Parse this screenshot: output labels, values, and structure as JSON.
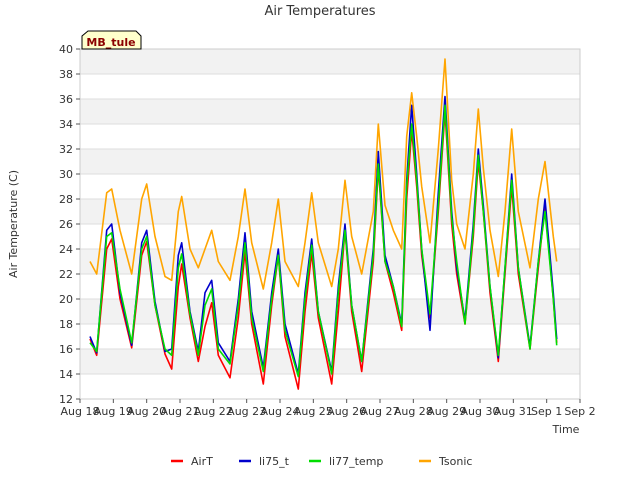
{
  "chart_data": {
    "type": "line",
    "title": "Air Temperatures",
    "xlabel": "Time",
    "ylabel": "Air Temperature (C)",
    "annotation": "MB_tule",
    "xlim": [
      0,
      15
    ],
    "ylim": [
      12,
      40
    ],
    "x_ticks": [
      {
        "pos": 0,
        "label": "Aug 18"
      },
      {
        "pos": 1,
        "label": "Aug 19"
      },
      {
        "pos": 2,
        "label": "Aug 20"
      },
      {
        "pos": 3,
        "label": "Aug 21"
      },
      {
        "pos": 4,
        "label": "Aug 22"
      },
      {
        "pos": 5,
        "label": "Aug 23"
      },
      {
        "pos": 6,
        "label": "Aug 24"
      },
      {
        "pos": 7,
        "label": "Aug 25"
      },
      {
        "pos": 8,
        "label": "Aug 26"
      },
      {
        "pos": 9,
        "label": "Aug 27"
      },
      {
        "pos": 10,
        "label": "Aug 28"
      },
      {
        "pos": 11,
        "label": "Aug 29"
      },
      {
        "pos": 12,
        "label": "Aug 30"
      },
      {
        "pos": 13,
        "label": "Aug 31"
      },
      {
        "pos": 14,
        "label": "Sep 1"
      },
      {
        "pos": 15,
        "label": "Sep 2"
      }
    ],
    "y_ticks": [
      12,
      14,
      16,
      18,
      20,
      22,
      24,
      26,
      28,
      30,
      32,
      34,
      36,
      38,
      40
    ],
    "grid": true,
    "legend_position": "bottom",
    "series": [
      {
        "name": "AirT",
        "color": "#ff0000",
        "points": [
          [
            0.3,
            16.8
          ],
          [
            0.5,
            15.5
          ],
          [
            0.8,
            24.0
          ],
          [
            0.95,
            24.8
          ],
          [
            1.2,
            20.0
          ],
          [
            1.55,
            16.1
          ],
          [
            1.85,
            23.5
          ],
          [
            2.0,
            24.6
          ],
          [
            2.25,
            19.5
          ],
          [
            2.55,
            15.6
          ],
          [
            2.75,
            14.4
          ],
          [
            2.95,
            21.0
          ],
          [
            3.05,
            22.8
          ],
          [
            3.3,
            18.5
          ],
          [
            3.55,
            15.0
          ],
          [
            3.75,
            17.8
          ],
          [
            3.95,
            19.7
          ],
          [
            4.15,
            15.5
          ],
          [
            4.5,
            13.7
          ],
          [
            4.75,
            18.5
          ],
          [
            4.95,
            23.8
          ],
          [
            5.15,
            18.0
          ],
          [
            5.5,
            13.2
          ],
          [
            5.75,
            19.5
          ],
          [
            5.95,
            23.5
          ],
          [
            6.15,
            17.0
          ],
          [
            6.55,
            12.8
          ],
          [
            6.75,
            19.0
          ],
          [
            6.95,
            23.7
          ],
          [
            7.15,
            18.5
          ],
          [
            7.55,
            13.2
          ],
          [
            7.75,
            19.0
          ],
          [
            7.95,
            25.5
          ],
          [
            8.15,
            19.0
          ],
          [
            8.45,
            14.2
          ],
          [
            8.8,
            23.0
          ],
          [
            8.95,
            30.5
          ],
          [
            9.15,
            23.0
          ],
          [
            9.4,
            20.5
          ],
          [
            9.65,
            17.5
          ],
          [
            9.8,
            28.0
          ],
          [
            9.95,
            33.5
          ],
          [
            10.1,
            29.0
          ],
          [
            10.25,
            23.5
          ],
          [
            10.5,
            18.5
          ],
          [
            10.75,
            27.0
          ],
          [
            10.95,
            35.0
          ],
          [
            11.15,
            26.0
          ],
          [
            11.3,
            22.0
          ],
          [
            11.55,
            18.0
          ],
          [
            11.8,
            25.0
          ],
          [
            11.95,
            31.0
          ],
          [
            12.1,
            27.0
          ],
          [
            12.3,
            20.5
          ],
          [
            12.55,
            15.0
          ],
          [
            12.75,
            22.0
          ],
          [
            12.95,
            29.0
          ],
          [
            13.15,
            22.0
          ],
          [
            13.5,
            16.0
          ],
          [
            13.75,
            22.5
          ],
          [
            13.95,
            27.5
          ],
          [
            14.2,
            20.0
          ],
          [
            14.3,
            16.5
          ]
        ]
      },
      {
        "name": "li75_t",
        "color": "#0000cc",
        "points": [
          [
            0.3,
            17.0
          ],
          [
            0.5,
            15.7
          ],
          [
            0.8,
            25.5
          ],
          [
            0.95,
            26.0
          ],
          [
            1.2,
            20.5
          ],
          [
            1.55,
            16.3
          ],
          [
            1.85,
            24.5
          ],
          [
            2.0,
            25.5
          ],
          [
            2.25,
            19.8
          ],
          [
            2.55,
            15.8
          ],
          [
            2.75,
            16.0
          ],
          [
            2.95,
            23.5
          ],
          [
            3.05,
            24.5
          ],
          [
            3.3,
            19.0
          ],
          [
            3.55,
            15.8
          ],
          [
            3.75,
            20.5
          ],
          [
            3.95,
            21.5
          ],
          [
            4.15,
            16.5
          ],
          [
            4.5,
            15.0
          ],
          [
            4.75,
            20.0
          ],
          [
            4.95,
            25.3
          ],
          [
            5.15,
            19.0
          ],
          [
            5.5,
            14.5
          ],
          [
            5.75,
            20.5
          ],
          [
            5.95,
            24.0
          ],
          [
            6.15,
            18.0
          ],
          [
            6.55,
            14.0
          ],
          [
            6.75,
            20.5
          ],
          [
            6.95,
            24.8
          ],
          [
            7.15,
            19.0
          ],
          [
            7.55,
            14.2
          ],
          [
            7.75,
            21.0
          ],
          [
            7.95,
            26.0
          ],
          [
            8.15,
            19.5
          ],
          [
            8.45,
            15.0
          ],
          [
            8.8,
            24.0
          ],
          [
            8.95,
            31.8
          ],
          [
            9.15,
            23.5
          ],
          [
            9.4,
            21.0
          ],
          [
            9.65,
            18.0
          ],
          [
            9.8,
            29.5
          ],
          [
            9.95,
            35.5
          ],
          [
            10.1,
            30.0
          ],
          [
            10.25,
            24.0
          ],
          [
            10.5,
            17.5
          ],
          [
            10.75,
            28.5
          ],
          [
            10.95,
            36.2
          ],
          [
            11.15,
            27.0
          ],
          [
            11.3,
            22.5
          ],
          [
            11.55,
            18.3
          ],
          [
            11.8,
            26.0
          ],
          [
            11.95,
            32.0
          ],
          [
            12.1,
            27.5
          ],
          [
            12.3,
            21.0
          ],
          [
            12.55,
            15.3
          ],
          [
            12.75,
            22.5
          ],
          [
            12.95,
            30.0
          ],
          [
            13.15,
            22.5
          ],
          [
            13.5,
            16.2
          ],
          [
            13.75,
            23.0
          ],
          [
            13.95,
            28.0
          ],
          [
            14.2,
            20.5
          ],
          [
            14.3,
            16.8
          ]
        ]
      },
      {
        "name": "li77_temp",
        "color": "#00dd00",
        "points": [
          [
            0.3,
            16.5
          ],
          [
            0.5,
            15.8
          ],
          [
            0.8,
            25.0
          ],
          [
            0.95,
            25.3
          ],
          [
            1.2,
            20.8
          ],
          [
            1.55,
            16.5
          ],
          [
            1.85,
            24.0
          ],
          [
            2.0,
            25.0
          ],
          [
            2.25,
            19.5
          ],
          [
            2.55,
            16.0
          ],
          [
            2.75,
            15.5
          ],
          [
            2.95,
            22.5
          ],
          [
            3.05,
            23.6
          ],
          [
            3.3,
            18.8
          ],
          [
            3.55,
            15.5
          ],
          [
            3.75,
            19.5
          ],
          [
            3.95,
            20.8
          ],
          [
            4.15,
            16.0
          ],
          [
            4.5,
            14.8
          ],
          [
            4.75,
            19.5
          ],
          [
            4.95,
            24.5
          ],
          [
            5.15,
            18.5
          ],
          [
            5.5,
            14.2
          ],
          [
            5.75,
            20.0
          ],
          [
            5.95,
            23.5
          ],
          [
            6.15,
            17.5
          ],
          [
            6.55,
            13.8
          ],
          [
            6.75,
            20.0
          ],
          [
            6.95,
            24.3
          ],
          [
            7.15,
            19.0
          ],
          [
            7.55,
            14.0
          ],
          [
            7.75,
            20.5
          ],
          [
            7.95,
            25.5
          ],
          [
            8.15,
            19.5
          ],
          [
            8.45,
            15.0
          ],
          [
            8.8,
            23.5
          ],
          [
            8.95,
            30.8
          ],
          [
            9.15,
            23.0
          ],
          [
            9.4,
            21.0
          ],
          [
            9.65,
            17.8
          ],
          [
            9.8,
            29.0
          ],
          [
            9.95,
            34.0
          ],
          [
            10.1,
            29.5
          ],
          [
            10.25,
            24.0
          ],
          [
            10.5,
            18.8
          ],
          [
            10.75,
            27.5
          ],
          [
            10.95,
            35.5
          ],
          [
            11.15,
            26.5
          ],
          [
            11.3,
            23.0
          ],
          [
            11.55,
            18.0
          ],
          [
            11.8,
            25.5
          ],
          [
            11.95,
            31.5
          ],
          [
            12.1,
            27.0
          ],
          [
            12.3,
            21.0
          ],
          [
            12.55,
            15.5
          ],
          [
            12.75,
            22.5
          ],
          [
            12.95,
            29.5
          ],
          [
            13.15,
            22.5
          ],
          [
            13.5,
            16.0
          ],
          [
            13.75,
            23.0
          ],
          [
            13.95,
            27.0
          ],
          [
            14.2,
            20.0
          ],
          [
            14.3,
            16.3
          ]
        ]
      },
      {
        "name": "Tsonic",
        "color": "#ffa500",
        "points": [
          [
            0.3,
            23.0
          ],
          [
            0.5,
            22.0
          ],
          [
            0.8,
            28.5
          ],
          [
            0.95,
            28.8
          ],
          [
            1.2,
            25.5
          ],
          [
            1.55,
            22.0
          ],
          [
            1.85,
            28.0
          ],
          [
            2.0,
            29.2
          ],
          [
            2.25,
            25.0
          ],
          [
            2.55,
            21.8
          ],
          [
            2.75,
            21.5
          ],
          [
            2.95,
            27.0
          ],
          [
            3.05,
            28.2
          ],
          [
            3.3,
            24.0
          ],
          [
            3.55,
            22.5
          ],
          [
            3.75,
            24.0
          ],
          [
            3.95,
            25.5
          ],
          [
            4.15,
            23.0
          ],
          [
            4.5,
            21.5
          ],
          [
            4.75,
            25.0
          ],
          [
            4.95,
            28.8
          ],
          [
            5.15,
            24.5
          ],
          [
            5.5,
            20.8
          ],
          [
            5.75,
            24.5
          ],
          [
            5.95,
            28.0
          ],
          [
            6.15,
            23.0
          ],
          [
            6.55,
            21.0
          ],
          [
            6.75,
            24.5
          ],
          [
            6.95,
            28.5
          ],
          [
            7.15,
            24.5
          ],
          [
            7.55,
            21.0
          ],
          [
            7.75,
            24.0
          ],
          [
            7.95,
            29.5
          ],
          [
            8.15,
            25.0
          ],
          [
            8.45,
            22.0
          ],
          [
            8.8,
            27.0
          ],
          [
            8.95,
            34.0
          ],
          [
            9.15,
            27.5
          ],
          [
            9.4,
            25.5
          ],
          [
            9.65,
            24.0
          ],
          [
            9.8,
            33.0
          ],
          [
            9.95,
            36.5
          ],
          [
            10.1,
            33.0
          ],
          [
            10.25,
            29.0
          ],
          [
            10.5,
            24.5
          ],
          [
            10.75,
            32.0
          ],
          [
            10.95,
            39.2
          ],
          [
            11.15,
            29.5
          ],
          [
            11.3,
            26.0
          ],
          [
            11.55,
            24.0
          ],
          [
            11.8,
            30.0
          ],
          [
            11.95,
            35.2
          ],
          [
            12.1,
            30.5
          ],
          [
            12.3,
            25.5
          ],
          [
            12.55,
            21.8
          ],
          [
            12.75,
            27.0
          ],
          [
            12.95,
            33.6
          ],
          [
            13.15,
            27.0
          ],
          [
            13.5,
            22.5
          ],
          [
            13.75,
            28.0
          ],
          [
            13.95,
            31.0
          ],
          [
            14.2,
            25.0
          ],
          [
            14.3,
            23.0
          ]
        ]
      }
    ]
  }
}
